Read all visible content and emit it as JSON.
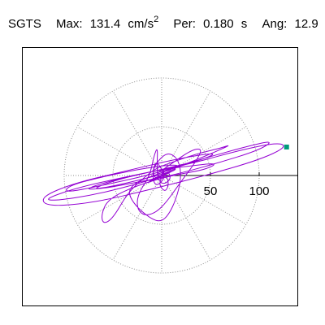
{
  "header": {
    "station": "SGTS",
    "max_label": "Max:",
    "max_value": "131.4",
    "max_unit": "cm/s",
    "max_unit_exp": "2",
    "period_label": "Per:",
    "period_value": "0.180",
    "period_unit": "s",
    "angle_label": "Ang:",
    "angle_value": "12.9"
  },
  "colors": {
    "orbit": "#9400d3",
    "marker": "#009a7a",
    "grid": "#8c8c8c",
    "axis": "#000000",
    "frame": "#000000"
  },
  "chart_data": {
    "type": "polar-orbit",
    "grid": true,
    "units": "cm/s^2",
    "ring_values": [
      50,
      100
    ],
    "radial_spokes_deg": [
      0,
      30,
      60,
      90,
      120,
      150,
      180,
      210,
      240,
      270,
      300,
      330
    ],
    "ticks": [
      {
        "value": 50,
        "label": "50"
      },
      {
        "value": 100,
        "label": "100"
      }
    ],
    "axis_range": [
      -162,
      162
    ],
    "max_point": {
      "x": 128.1,
      "y": 29.2
    },
    "orbit": [
      [
        0,
        0
      ],
      [
        8,
        3
      ],
      [
        16,
        7
      ],
      [
        8,
        5
      ],
      [
        0,
        0
      ],
      [
        -8,
        -5
      ],
      [
        -16,
        -8
      ],
      [
        -6,
        -3
      ],
      [
        5,
        2
      ],
      [
        12,
        5
      ],
      [
        2,
        0
      ],
      [
        -8,
        -4
      ],
      [
        -14,
        -6
      ],
      [
        -6,
        -2
      ],
      [
        2,
        1
      ],
      [
        8,
        4
      ],
      [
        0,
        0
      ],
      [
        -10,
        -4
      ],
      [
        -30,
        -10
      ],
      [
        -70,
        -20
      ],
      [
        -110,
        -26
      ],
      [
        -120,
        -24
      ],
      [
        -85,
        -12
      ],
      [
        -30,
        0
      ],
      [
        30,
        12
      ],
      [
        80,
        26
      ],
      [
        120,
        34
      ],
      [
        128,
        29
      ],
      [
        100,
        16
      ],
      [
        45,
        0
      ],
      [
        -10,
        -14
      ],
      [
        -70,
        -28
      ],
      [
        -118,
        -32
      ],
      [
        -124,
        -22
      ],
      [
        -90,
        -8
      ],
      [
        -40,
        4
      ],
      [
        20,
        18
      ],
      [
        60,
        24
      ],
      [
        35,
        14
      ],
      [
        -15,
        0
      ],
      [
        -60,
        -10
      ],
      [
        -100,
        -18
      ],
      [
        -95,
        -10
      ],
      [
        -55,
        0
      ],
      [
        -15,
        8
      ],
      [
        20,
        12
      ],
      [
        10,
        4
      ],
      [
        -20,
        -4
      ],
      [
        -55,
        -12
      ],
      [
        -72,
        -14
      ],
      [
        -45,
        -4
      ],
      [
        -10,
        4
      ],
      [
        25,
        12
      ],
      [
        45,
        18
      ],
      [
        88,
        30
      ],
      [
        115,
        36
      ],
      [
        100,
        26
      ],
      [
        55,
        12
      ],
      [
        10,
        0
      ],
      [
        -30,
        -8
      ],
      [
        -65,
        -14
      ],
      [
        -80,
        -14
      ],
      [
        -40,
        -2
      ],
      [
        0,
        6
      ],
      [
        30,
        10
      ],
      [
        58,
        13
      ],
      [
        45,
        6
      ],
      [
        10,
        0
      ],
      [
        -25,
        -10
      ],
      [
        -55,
        -24
      ],
      [
        -62,
        -40
      ],
      [
        -60,
        -50
      ],
      [
        -50,
        -44
      ],
      [
        -35,
        -18
      ],
      [
        -18,
        -2
      ],
      [
        -5,
        8
      ],
      [
        12,
        14
      ],
      [
        35,
        22
      ],
      [
        60,
        28
      ],
      [
        72,
        32
      ],
      [
        50,
        22
      ],
      [
        20,
        10
      ],
      [
        -8,
        0
      ],
      [
        -25,
        -6
      ],
      [
        -35,
        -16
      ],
      [
        -28,
        -30
      ],
      [
        -12,
        -44
      ],
      [
        0,
        -48
      ],
      [
        10,
        -36
      ],
      [
        18,
        -14
      ],
      [
        20,
        4
      ],
      [
        16,
        18
      ],
      [
        6,
        24
      ],
      [
        -5,
        14
      ],
      [
        -10,
        2
      ],
      [
        -3,
        -6
      ],
      [
        -5,
        6
      ],
      [
        -4,
        30
      ],
      [
        -8,
        20
      ],
      [
        -12,
        0
      ],
      [
        -25,
        -20
      ],
      [
        -25,
        -36
      ],
      [
        -15,
        -42
      ],
      [
        0,
        -34
      ],
      [
        20,
        -6
      ],
      [
        35,
        14
      ],
      [
        42,
        28
      ],
      [
        30,
        26
      ],
      [
        10,
        12
      ],
      [
        -2,
        4
      ],
      [
        4,
        -2
      ],
      [
        -6,
        -12
      ],
      [
        -10,
        0
      ],
      [
        -6,
        16
      ],
      [
        0,
        6
      ],
      [
        8,
        -6
      ],
      [
        4,
        -18
      ],
      [
        -4,
        -8
      ],
      [
        6,
        6
      ],
      [
        10,
        -4
      ],
      [
        0,
        -10
      ],
      [
        -6,
        2
      ],
      [
        4,
        8
      ],
      [
        -2,
        -4
      ],
      [
        0,
        0
      ]
    ]
  }
}
